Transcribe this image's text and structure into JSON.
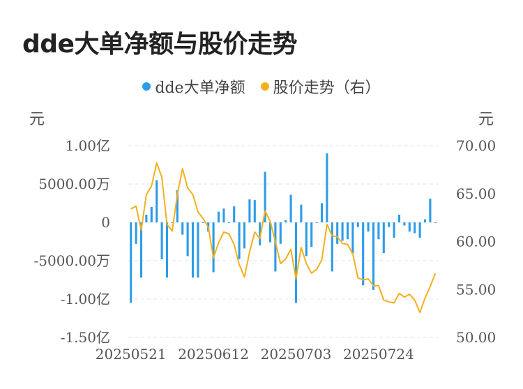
{
  "title": "dde大单净额与股价走势",
  "legend": [
    {
      "name": "dde大单净额",
      "color": "#2D9CE8"
    },
    {
      "name": "股价走势（右）",
      "color": "#F2B01E"
    }
  ],
  "chart_data": {
    "type": "bar+line",
    "title": "dde大单净额与股价走势",
    "left_axis": {
      "unit": "元",
      "range": [
        -1.5,
        1.0
      ],
      "ticks": [
        1.0,
        0.5,
        0,
        -0.5,
        -1.0,
        -1.5
      ],
      "tick_labels": [
        "1.00亿",
        "5000.00万",
        "0",
        "-5000.00万",
        "-1.00亿",
        "-1.50亿"
      ],
      "value_unit": "亿元"
    },
    "right_axis": {
      "unit": "元",
      "range": [
        50,
        70
      ],
      "ticks": [
        70,
        65,
        60,
        55,
        50
      ],
      "tick_labels": [
        "70.00",
        "65.00",
        "60.00",
        "55.00",
        "50.00"
      ]
    },
    "x_tick_labels": [
      {
        "label": "20250521",
        "index": 0
      },
      {
        "label": "20250612",
        "index": 16
      },
      {
        "label": "20250703",
        "index": 32
      },
      {
        "label": "20250724",
        "index": 48
      }
    ],
    "grid": true,
    "legend_position": "top-center",
    "series": [
      {
        "name": "dde大单净额",
        "type": "bar",
        "axis": "left",
        "color": "#2D9CE8",
        "values": [
          -1.05,
          -0.28,
          -0.72,
          0.1,
          0.2,
          0.55,
          -0.48,
          -0.72,
          0.0,
          0.42,
          -0.16,
          -0.44,
          -0.72,
          -0.72,
          0.0,
          -0.12,
          -0.65,
          0.14,
          0.18,
          0.0,
          0.21,
          -0.48,
          -0.34,
          0.3,
          0.29,
          -0.3,
          0.66,
          -0.26,
          -0.64,
          -0.28,
          0.03,
          0.36,
          -1.05,
          0.23,
          -0.44,
          -0.32,
          0.0,
          0.25,
          0.9,
          -0.64,
          -0.28,
          -0.24,
          -0.22,
          -0.4,
          -0.06,
          -0.82,
          -0.12,
          -0.88,
          -0.22,
          -0.4,
          -0.06,
          -0.2,
          0.1,
          -0.04,
          -0.12,
          -0.14,
          -0.2,
          0.04,
          0.31,
          -0.01
        ]
      },
      {
        "name": "股价走势（右）",
        "type": "line",
        "axis": "right",
        "color": "#F2B01E",
        "values": [
          63.4,
          63.7,
          61.2,
          64.9,
          65.8,
          68.2,
          66.7,
          61.8,
          61.1,
          64.9,
          67.6,
          65.6,
          64.9,
          63.1,
          62.4,
          61.5,
          58.3,
          59.9,
          61.0,
          60.8,
          59.7,
          57.6,
          56.3,
          58.9,
          61.0,
          60.3,
          63.2,
          62.1,
          60.0,
          57.7,
          58.2,
          59.2,
          56.1,
          59.4,
          57.7,
          56.7,
          57.1,
          58.1,
          61.8,
          60.6,
          60.5,
          59.8,
          59.7,
          58.7,
          56.2,
          56.0,
          56.1,
          55.4,
          55.4,
          53.9,
          53.7,
          53.6,
          54.6,
          54.2,
          54.5,
          53.9,
          52.6,
          54.1,
          55.3,
          56.7
        ]
      }
    ]
  }
}
